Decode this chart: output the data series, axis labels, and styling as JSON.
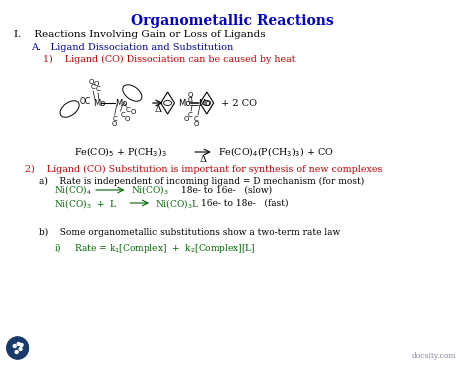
{
  "title": "Organometallic Reactions",
  "title_color": "#0000CC",
  "title_fontsize": 10,
  "bg_color": "#FFFFFF",
  "section_I": "I.    Reactions Involving Gain or Loss of Ligands",
  "section_I_color": "#000000",
  "section_I_fontsize": 7.5,
  "section_A": "A.   Ligand Dissociation and Substitution",
  "section_A_color": "#0000AA",
  "section_A_fontsize": 7,
  "item_1": "1)    Ligand (CO) Dissociation can be caused by heat",
  "item_1_color": "#CC0000",
  "item_1_fontsize": 6.8,
  "item_2": "2)    Ligand (CO) Substitution is important for synthesis of new complexes",
  "item_2_color": "#CC0000",
  "item_2_fontsize": 6.8,
  "item_2a_title": "a)    Rate is independent of incoming ligand = D mechanism (for most)",
  "item_2a_title_color": "#000000",
  "item_2a_title_fontsize": 6.5,
  "rxn1_note": "18e- to 16e-   (slow)",
  "rxn2_note": "16e- to 18e-   (fast)",
  "rxn_color": "#006600",
  "rxn_fontsize": 6.5,
  "item_2b_title": "b)    Some organometallic substitutions show a two-term rate law",
  "item_2b_fontsize": 6.5,
  "item_2b_color": "#000000",
  "rate_law_color": "#006600",
  "rate_law_fontsize": 6.5,
  "watermark": "docsity.com",
  "watermark_color": "#8888AA",
  "watermark_fontsize": 5.5
}
